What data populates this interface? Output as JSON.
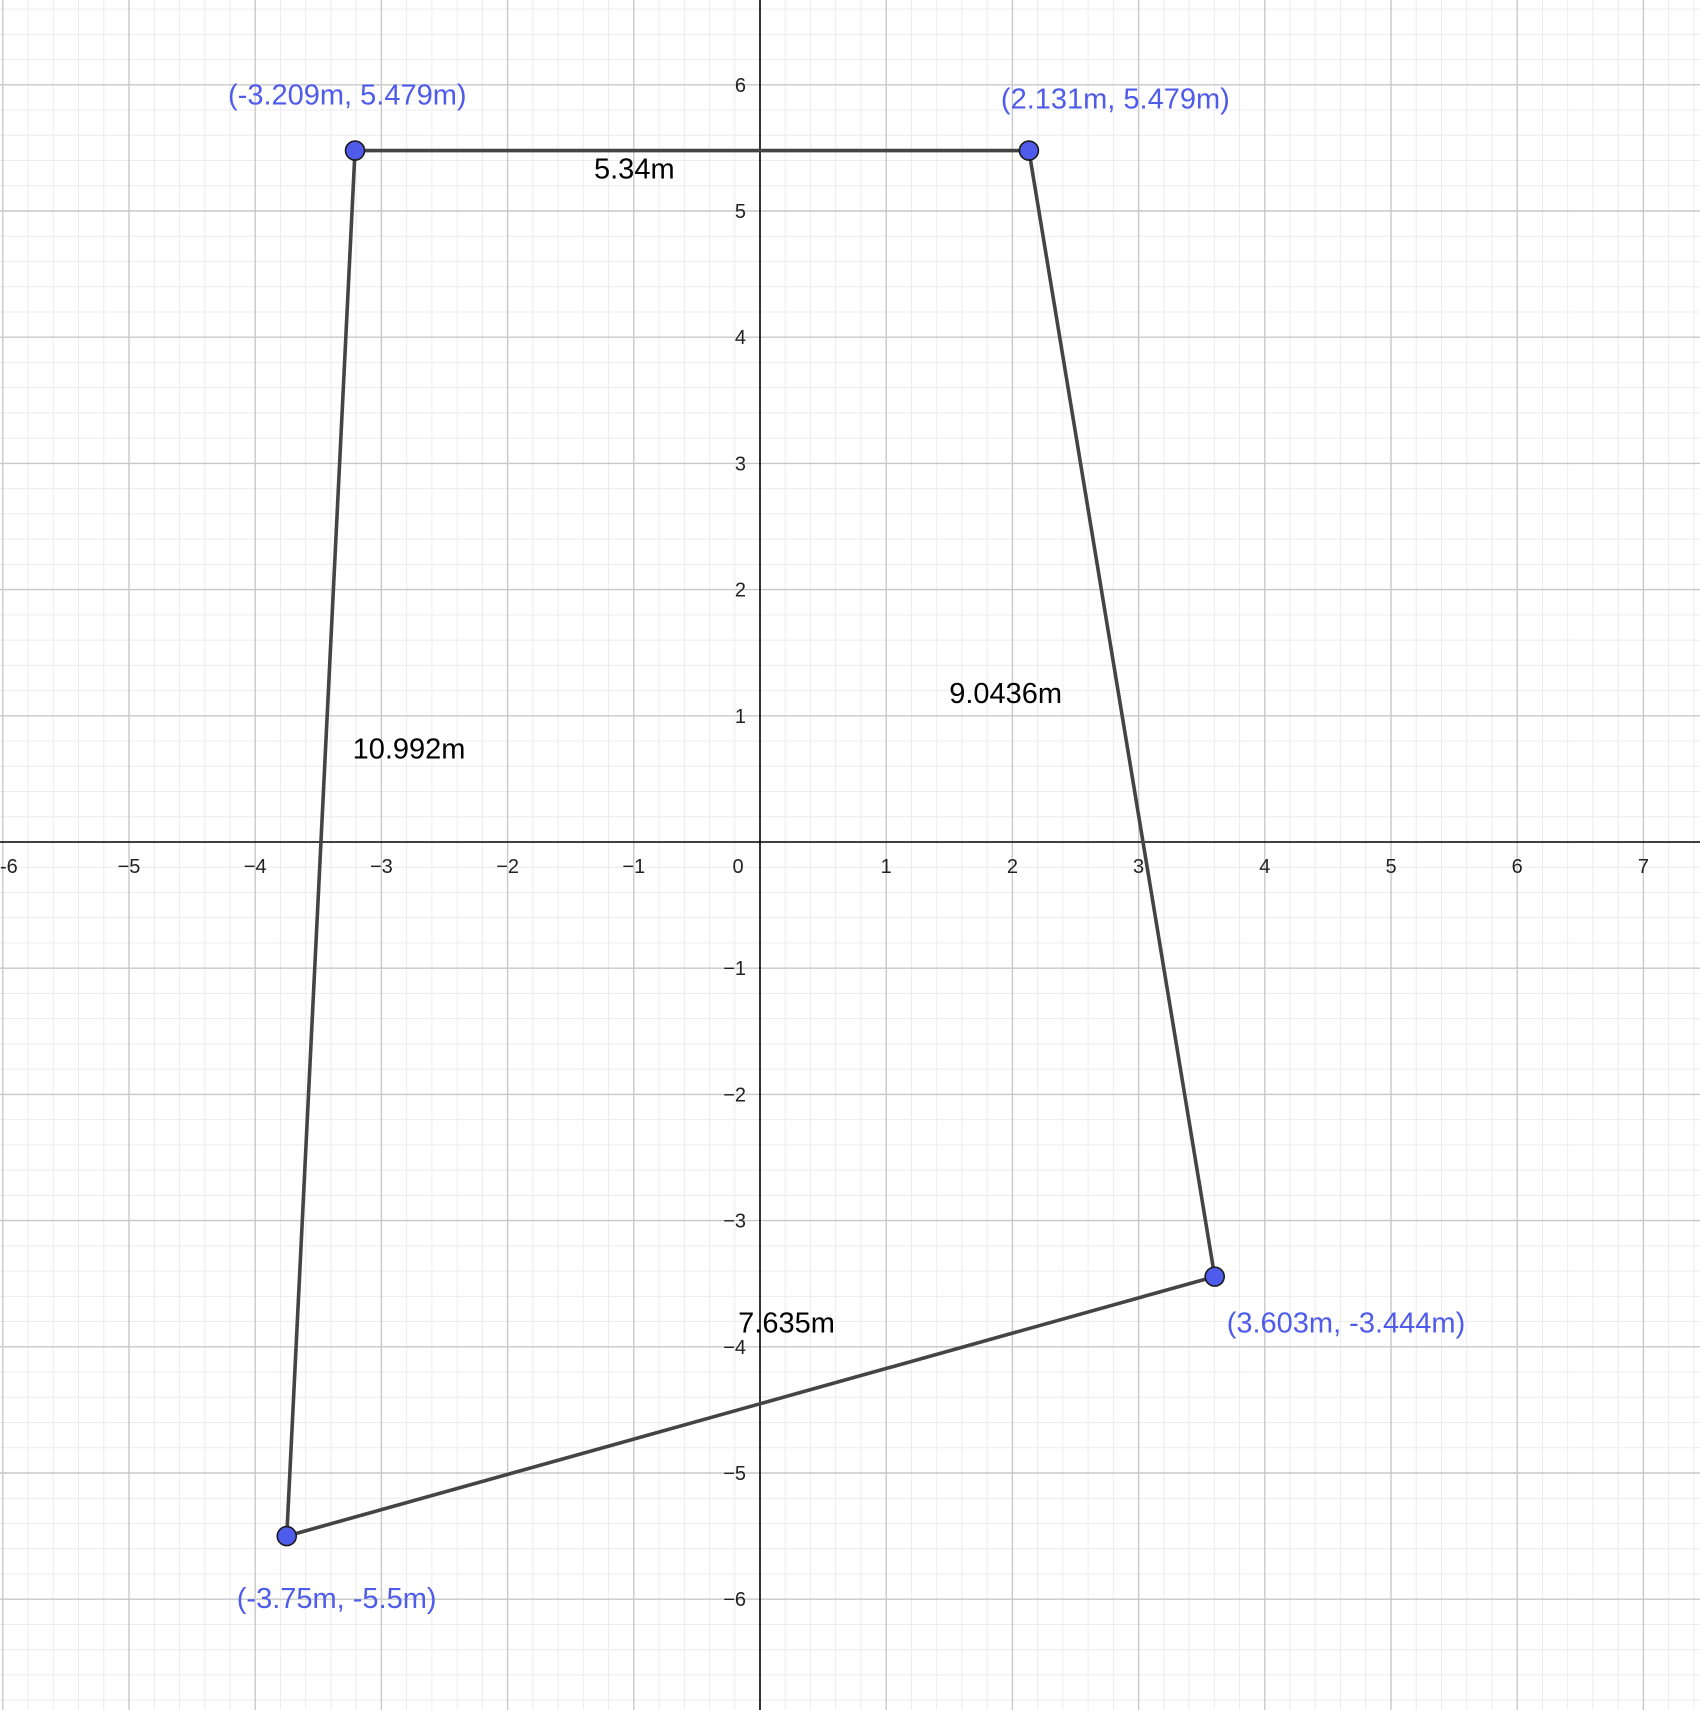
{
  "chart_data": {
    "type": "diagram",
    "x_ticks": [
      "-6",
      "−5",
      "−4",
      "−3",
      "−2",
      "−1",
      "1",
      "2",
      "3",
      "4",
      "5",
      "6",
      "7"
    ],
    "y_ticks": [
      "6",
      "5",
      "4",
      "3",
      "2",
      "1",
      "−1",
      "−2",
      "−3",
      "−4",
      "−5",
      "−6"
    ],
    "origin_label": "0",
    "xlim": [
      -6,
      7.4
    ],
    "ylim": [
      -6.8,
      6.6
    ],
    "grid": true,
    "colors": {
      "point_fill": "#4f5bea",
      "point_label": "#4f5bea",
      "segment": "#444444",
      "major_grid": "#c8c8c8",
      "minor_grid": "#ececec",
      "axis": "#000000"
    },
    "points": [
      {
        "x": -3.209,
        "y": 5.479,
        "label": "(-3.209m, 5.479m)"
      },
      {
        "x": 2.131,
        "y": 5.479,
        "label": "(2.131m, 5.479m)"
      },
      {
        "x": 3.603,
        "y": -3.444,
        "label": "(3.603m, -3.444m)"
      },
      {
        "x": -3.75,
        "y": -5.5,
        "label": "(-3.75m, -5.5m)"
      }
    ],
    "segments": [
      {
        "from": 0,
        "to": 1,
        "label": "5.34m"
      },
      {
        "from": 1,
        "to": 2,
        "label": "9.0436m"
      },
      {
        "from": 2,
        "to": 3,
        "label": "7.635m"
      },
      {
        "from": 3,
        "to": 0,
        "label": "10.992m"
      }
    ]
  }
}
